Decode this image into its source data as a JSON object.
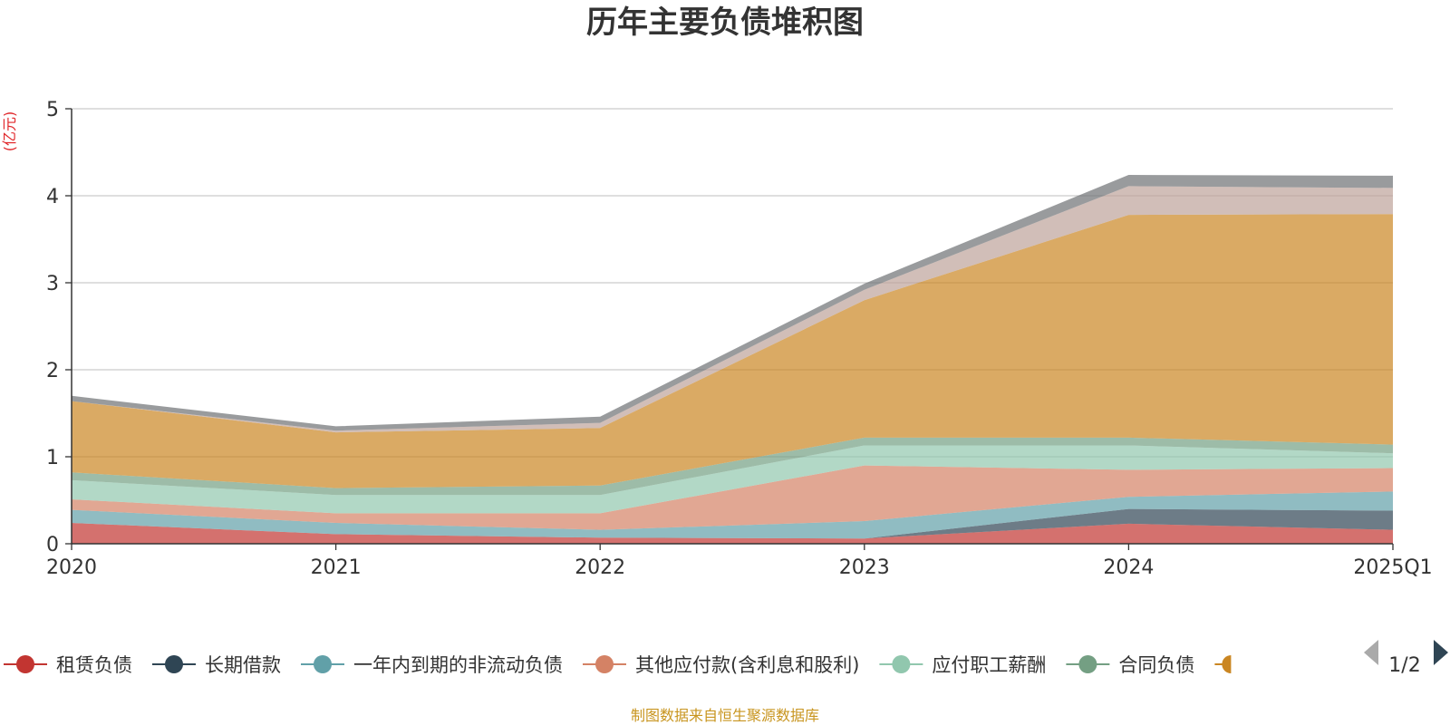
{
  "chart_data": {
    "type": "area",
    "stacked": true,
    "title": "历年主要负债堆积图",
    "ylabel": "(亿元)",
    "xlabel": "",
    "categories": [
      "2020",
      "2021",
      "2022",
      "2023",
      "2024",
      "2025Q1"
    ],
    "ylim": [
      0,
      5
    ],
    "yticks": [
      0,
      1,
      2,
      3,
      4,
      5
    ],
    "grid": true,
    "legend_position": "bottom",
    "series": [
      {
        "name": "租赁负债",
        "color": "#c23531",
        "values": [
          0.24,
          0.11,
          0.07,
          0.06,
          0.23,
          0.16
        ]
      },
      {
        "name": "长期借款",
        "color": "#2f4554",
        "values": [
          0.0,
          0.0,
          0.0,
          0.0,
          0.17,
          0.22
        ]
      },
      {
        "name": "一年内到期的非流动负债",
        "color": "#61a0a8",
        "values": [
          0.15,
          0.13,
          0.09,
          0.2,
          0.14,
          0.22
        ]
      },
      {
        "name": "其他应付款(含利息和股利)",
        "color": "#d48265",
        "values": [
          0.12,
          0.11,
          0.19,
          0.64,
          0.31,
          0.27
        ]
      },
      {
        "name": "应付职工薪酬",
        "color": "#91c7ae",
        "values": [
          0.22,
          0.21,
          0.21,
          0.23,
          0.28,
          0.17
        ]
      },
      {
        "name": "合同负债",
        "color": "#749f83",
        "values": [
          0.09,
          0.08,
          0.11,
          0.09,
          0.09,
          0.1
        ]
      },
      {
        "name": "",
        "color": "#ca8622",
        "values": [
          0.82,
          0.64,
          0.66,
          1.58,
          2.56,
          2.65
        ]
      },
      {
        "name": "",
        "color": "#bda29a",
        "values": [
          0.0,
          0.02,
          0.06,
          0.12,
          0.33,
          0.3
        ]
      },
      {
        "name": "",
        "color": "#6e7074",
        "values": [
          0.06,
          0.05,
          0.07,
          0.07,
          0.13,
          0.14
        ]
      }
    ]
  },
  "legend": {
    "page_label": "1/2"
  },
  "source_text": "制图数据来自恒生聚源数据库",
  "colors": {
    "grid": "#cccccc",
    "axis": "#333333",
    "unit": "#e0262a",
    "source": "#c8951f",
    "pager_inactive": "#aaaaaa",
    "pager_active": "#2f4554"
  }
}
